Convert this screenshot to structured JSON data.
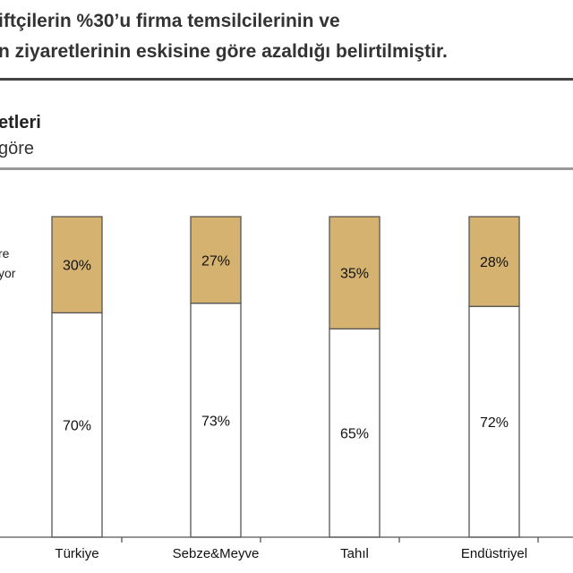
{
  "header": {
    "line1": "iftçilerin %30’u firma temsilcilerinin ve",
    "line2": "n ziyaretlerinin eskisine göre azaldığı belirtilmiştir."
  },
  "chart_title": {
    "line1": "etleri",
    "line2": "göre"
  },
  "legend": {
    "line1": "re",
    "line2": "yor"
  },
  "chart_data": {
    "type": "bar",
    "stacked": true,
    "categories": [
      "Türkiye",
      "Sebze&Meyve",
      "Tahıl",
      "Endüstriyel"
    ],
    "series": [
      {
        "values": [
          70,
          73,
          65,
          72
        ],
        "labels": [
          "70%",
          "73%",
          "65%",
          "72%"
        ],
        "color": "#ffffff"
      },
      {
        "values": [
          30,
          27,
          35,
          28
        ],
        "labels": [
          "30%",
          "27%",
          "35%",
          "28%"
        ],
        "color": "#d5b26f"
      }
    ],
    "ylim": [
      0,
      100
    ],
    "grid": false
  }
}
